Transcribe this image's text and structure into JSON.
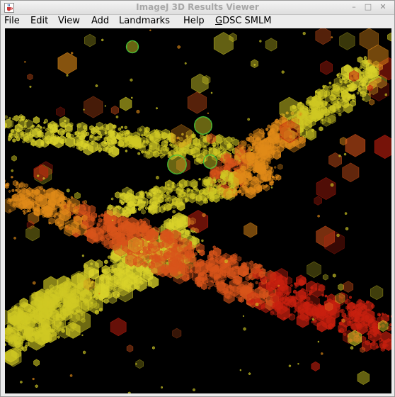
{
  "window": {
    "title": "ImageJ 3D Results Viewer"
  },
  "icons": {
    "app": "java-cup-icon",
    "minimize": "minimize-icon",
    "maximize": "maximize-icon",
    "close": "close-icon"
  },
  "menubar": {
    "items": [
      {
        "label": "File"
      },
      {
        "label": "Edit"
      },
      {
        "label": "View"
      },
      {
        "label": "Add"
      },
      {
        "label": "Landmarks"
      },
      {
        "label": "Help"
      },
      {
        "label": "GDSC SMLM",
        "mnemonic": "G",
        "rest": "DSC SMLM"
      }
    ]
  },
  "viewer": {
    "background": "#000000",
    "palette": [
      "#d9d22a",
      "#cfc823",
      "#e08a18",
      "#d8541a",
      "#c8200f"
    ],
    "selection_color": "#3bbf3b"
  }
}
